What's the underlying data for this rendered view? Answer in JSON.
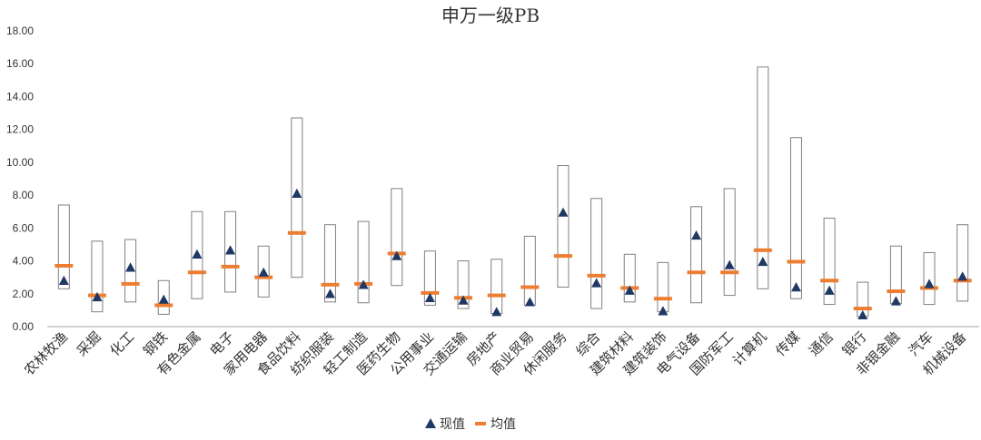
{
  "chart_data": {
    "type": "range",
    "title": "申万一级PB",
    "ylim": [
      0,
      18
    ],
    "yticks": [
      "0.00",
      "2.00",
      "4.00",
      "6.00",
      "8.00",
      "10.00",
      "12.00",
      "14.00",
      "16.00",
      "18.00"
    ],
    "grid": false,
    "legend_position": "bottom-center",
    "legend": {
      "current": "现值",
      "mean": "均值"
    },
    "colors": {
      "current": "#1f3864",
      "mean": "#ed7d31",
      "range_box": "#808080",
      "axis": "#a6a6a6"
    },
    "categories": [
      "农林牧渔",
      "采掘",
      "化工",
      "钢铁",
      "有色金属",
      "电子",
      "家用电器",
      "食品饮料",
      "纺织服装",
      "轻工制造",
      "医药生物",
      "公用事业",
      "交通运输",
      "房地产",
      "商业贸易",
      "休闲服务",
      "综合",
      "建筑材料",
      "建筑装饰",
      "电气设备",
      "国防军工",
      "计算机",
      "传媒",
      "通信",
      "银行",
      "非银金融",
      "汽车",
      "机械设备"
    ],
    "series": [
      {
        "name": "max",
        "values": [
          7.4,
          5.2,
          5.3,
          2.8,
          7.0,
          7.0,
          4.9,
          12.7,
          6.2,
          6.4,
          8.4,
          4.6,
          4.0,
          4.1,
          5.5,
          9.8,
          7.8,
          4.4,
          3.9,
          7.3,
          8.4,
          15.8,
          11.5,
          6.6,
          2.7,
          4.9,
          4.5,
          6.2
        ]
      },
      {
        "name": "min",
        "values": [
          2.3,
          0.9,
          1.5,
          0.75,
          1.7,
          2.1,
          1.8,
          3.0,
          1.5,
          1.45,
          2.5,
          1.3,
          1.1,
          0.8,
          1.3,
          2.4,
          1.1,
          1.5,
          0.9,
          1.45,
          1.9,
          2.3,
          1.7,
          1.35,
          0.6,
          1.4,
          1.35,
          1.55
        ]
      },
      {
        "name": "现值",
        "values": [
          2.8,
          1.8,
          3.6,
          1.65,
          4.4,
          4.65,
          3.3,
          8.1,
          2.0,
          2.55,
          4.3,
          1.75,
          1.6,
          0.9,
          1.5,
          6.95,
          2.65,
          2.2,
          0.95,
          5.55,
          3.75,
          3.95,
          2.4,
          2.2,
          0.7,
          1.55,
          2.6,
          3.05
        ]
      },
      {
        "name": "均值",
        "values": [
          3.7,
          1.9,
          2.6,
          1.3,
          3.3,
          3.65,
          3.0,
          5.7,
          2.55,
          2.6,
          4.45,
          2.05,
          1.75,
          1.9,
          2.4,
          4.3,
          3.1,
          2.35,
          1.7,
          3.3,
          3.3,
          4.65,
          3.95,
          2.8,
          1.1,
          2.15,
          2.35,
          2.8
        ]
      }
    ]
  }
}
